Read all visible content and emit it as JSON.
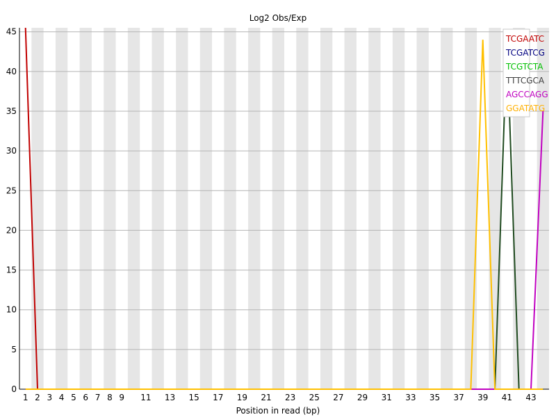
{
  "chart_data": {
    "type": "line",
    "title": "Log2 Obs/Exp",
    "xlabel": "Position in read (bp)",
    "ylabel": "",
    "x_ticks": [
      "1",
      "2",
      "3",
      "4",
      "5",
      "6",
      "7",
      "8",
      "9",
      "11",
      "13",
      "15",
      "17",
      "19",
      "21",
      "23",
      "25",
      "27",
      "29",
      "31",
      "33",
      "35",
      "37",
      "39",
      "41",
      "43"
    ],
    "ylim": [
      0,
      45.5
    ],
    "y_ticks": [
      "0",
      "5",
      "10",
      "15",
      "20",
      "25",
      "30",
      "35",
      "40",
      "45"
    ],
    "grid": true,
    "legend_position": "top-right",
    "series": [
      {
        "name": "TCGAATC",
        "color": "#c00000",
        "points": [
          [
            0,
            45.5
          ],
          [
            1,
            0
          ],
          [
            43,
            0
          ]
        ]
      },
      {
        "name": "TCGATCG",
        "color": "#000080",
        "points": [
          [
            0,
            0
          ],
          [
            43,
            0
          ]
        ]
      },
      {
        "name": "TCGTCTA",
        "color": "#00c000",
        "points": [
          [
            0,
            0
          ],
          [
            43,
            0
          ]
        ]
      },
      {
        "name": "TTTCGCA",
        "color": "#404040",
        "points": [
          [
            0,
            0
          ],
          [
            38,
            0
          ],
          [
            39,
            0
          ],
          [
            40,
            44
          ],
          [
            41,
            0
          ],
          [
            43,
            0
          ]
        ]
      },
      {
        "name": "AGCCAGG",
        "color": "#c000c0",
        "points": [
          [
            0,
            0
          ],
          [
            37,
            0
          ],
          [
            39,
            0
          ],
          [
            42,
            0
          ],
          [
            43,
            35
          ]
        ]
      },
      {
        "name": "GGATATG",
        "color": "#ffb000",
        "points": [
          [
            0,
            0
          ],
          [
            37,
            0
          ],
          [
            38,
            44
          ],
          [
            39,
            0
          ],
          [
            43,
            0
          ]
        ]
      }
    ],
    "series_line_colors": [
      "#c00000",
      "#000080",
      "#00c000",
      "#1f4a1f",
      "#c000c0",
      "#ffc000"
    ]
  }
}
